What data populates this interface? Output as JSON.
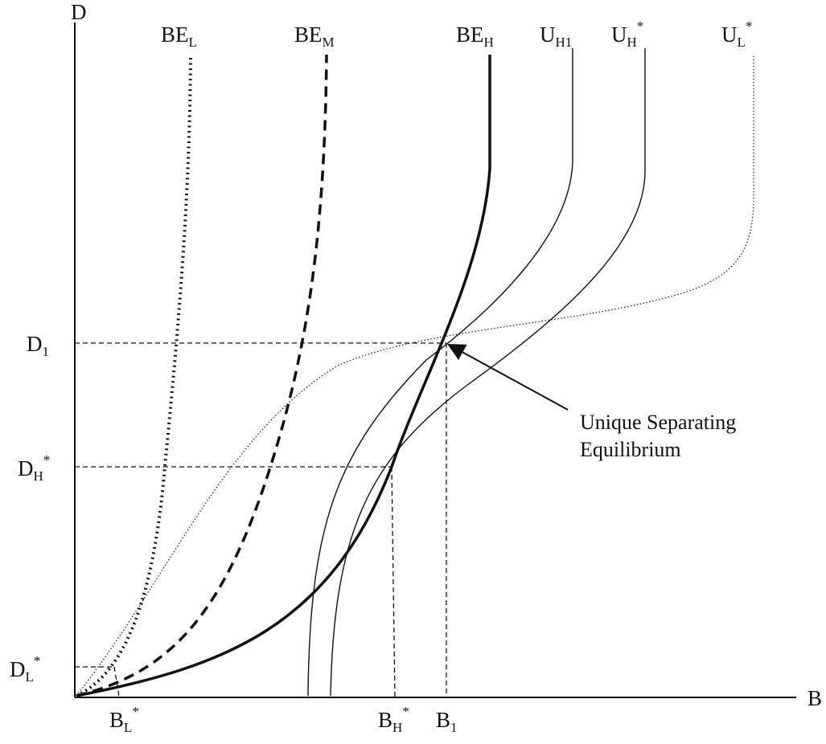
{
  "diagram": {
    "axes": {
      "y_label": "D",
      "x_label": "B"
    },
    "curves": [
      {
        "id": "be-l",
        "label_main": "BE",
        "label_sub": "L",
        "label_sup": "",
        "style": "dotted-heavy"
      },
      {
        "id": "be-m",
        "label_main": "BE",
        "label_sub": "M",
        "label_sup": "",
        "style": "dashed-heavy"
      },
      {
        "id": "be-h",
        "label_main": "BE",
        "label_sub": "H",
        "label_sup": "",
        "style": "solid-heavy"
      },
      {
        "id": "u-h1",
        "label_main": "U",
        "label_sub": "H1",
        "label_sup": "",
        "style": "solid-thin"
      },
      {
        "id": "u-h-star",
        "label_main": "U",
        "label_sub": "H",
        "label_sup": "*",
        "style": "solid-thin"
      },
      {
        "id": "u-l-star",
        "label_main": "U",
        "label_sub": "L",
        "label_sup": "*",
        "style": "dotted-thin"
      }
    ],
    "y_ticks": [
      {
        "id": "d1",
        "main": "D",
        "sub": "1",
        "sup": ""
      },
      {
        "id": "dh-star",
        "main": "D",
        "sub": "H",
        "sup": "*"
      },
      {
        "id": "dl-star",
        "main": "D",
        "sub": "L",
        "sup": "*"
      }
    ],
    "x_ticks": [
      {
        "id": "bl-star",
        "main": "B",
        "sub": "L",
        "sup": "*"
      },
      {
        "id": "bh-star",
        "main": "B",
        "sub": "H",
        "sup": "*"
      },
      {
        "id": "b1",
        "main": "B",
        "sub": "1",
        "sup": ""
      }
    ],
    "annotation": {
      "line1": "Unique Separating",
      "line2": "Equilibrium"
    }
  }
}
